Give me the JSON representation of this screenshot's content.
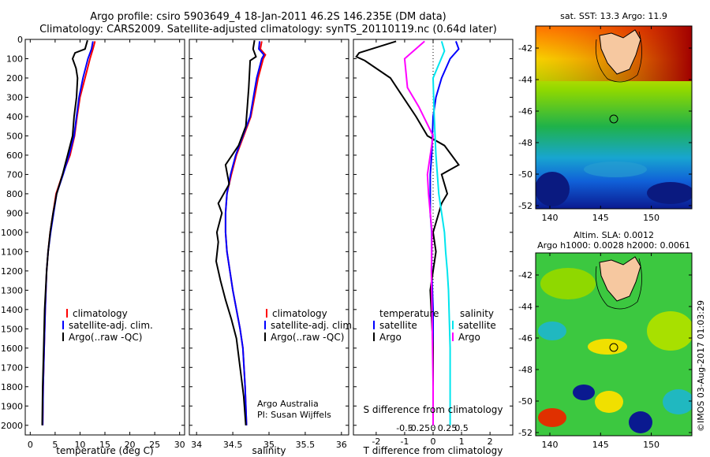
{
  "title_line1": "Argo profile: csiro 5903649_4 18-Jan-2011 46.2S 146.235E (DM data)",
  "title_line2": "Climatology: CARS2009. Satellite-adjusted climatology: synTS_20110119.nc (0.64d later)",
  "colors": {
    "climatology": "#ff0000",
    "satellite": "#0000ff",
    "argo": "#000000",
    "t_sat": "#0000ff",
    "s_sat": "#00e5ee",
    "s_argo": "#ff00ff"
  },
  "chart_data": [
    {
      "type": "line",
      "xlabel": "temperature (deg C)",
      "ylim": [
        2050,
        0
      ],
      "xlim": [
        -1,
        31
      ],
      "xticks": [
        0,
        5,
        10,
        15,
        20,
        25,
        30
      ],
      "yticks": [
        0,
        100,
        200,
        300,
        400,
        500,
        600,
        700,
        800,
        900,
        1000,
        1100,
        1200,
        1300,
        1400,
        1500,
        1600,
        1700,
        1800,
        1900,
        2000
      ],
      "legend": [
        "climatology",
        "satellite-adj. clim.",
        "Argo(..raw -QC)"
      ],
      "series": [
        {
          "name": "climatology",
          "x": [
            13.0,
            12.6,
            12.0,
            11.0,
            10.0,
            9.4,
            8.9,
            8.0,
            6.5,
            5.2,
            4.6,
            4.0,
            3.6,
            3.3,
            3.0,
            2.8,
            2.6,
            2.5
          ],
          "y": [
            10,
            50,
            100,
            200,
            300,
            400,
            500,
            600,
            700,
            800,
            900,
            1000,
            1100,
            1200,
            1400,
            1600,
            1800,
            2000
          ]
        },
        {
          "name": "satellite-adj. clim.",
          "x": [
            12.6,
            12.3,
            11.6,
            10.6,
            9.8,
            9.3,
            8.8,
            7.8,
            6.6,
            5.3,
            4.7,
            4.1,
            3.6,
            3.3,
            3.0,
            2.8,
            2.6,
            2.5
          ],
          "y": [
            10,
            50,
            100,
            200,
            300,
            400,
            500,
            600,
            700,
            800,
            900,
            1000,
            1100,
            1200,
            1400,
            1600,
            1800,
            2000
          ]
        },
        {
          "name": "Argo(..raw -QC)",
          "x": [
            11.5,
            11.0,
            9.0,
            8.5,
            9.2,
            9.5,
            9.3,
            8.8,
            8.5,
            7.5,
            6.5,
            5.3,
            4.6,
            4.0,
            3.6,
            3.3,
            2.9,
            2.7,
            2.5,
            2.4
          ],
          "y": [
            5,
            50,
            70,
            100,
            150,
            200,
            300,
            400,
            500,
            600,
            700,
            800,
            900,
            1000,
            1100,
            1200,
            1400,
            1600,
            1800,
            2000
          ]
        }
      ]
    },
    {
      "type": "line",
      "xlabel": "salinity",
      "ylim": [
        2050,
        0
      ],
      "xlim": [
        33.9,
        36.1
      ],
      "xticks": [
        34,
        34.5,
        35,
        35.5,
        36
      ],
      "xticklabels": [
        "34",
        "34.5",
        "35",
        "35.5",
        "36"
      ],
      "legend": [
        "climatology",
        "satellite-adj. clim."
      ],
      "legend2": "Argo(..raw -QC)",
      "note1": "Argo Australia",
      "note2": "PI: Susan Wijffels",
      "series": [
        {
          "name": "climatology",
          "x": [
            34.9,
            34.88,
            34.95,
            34.92,
            34.85,
            34.75,
            34.65,
            34.55,
            34.48,
            34.42,
            34.4,
            34.4,
            34.42,
            34.46,
            34.5,
            34.55,
            34.6,
            34.64,
            34.67,
            34.69
          ],
          "y": [
            10,
            50,
            80,
            100,
            200,
            400,
            500,
            600,
            700,
            800,
            900,
            1000,
            1100,
            1200,
            1300,
            1400,
            1500,
            1600,
            1800,
            2000
          ]
        },
        {
          "name": "satellite-adj. clim.",
          "x": [
            34.87,
            34.86,
            34.93,
            34.9,
            34.83,
            34.74,
            34.64,
            34.54,
            34.47,
            34.42,
            34.4,
            34.4,
            34.42,
            34.46,
            34.5,
            34.55,
            34.6,
            34.64,
            34.67,
            34.69
          ],
          "y": [
            10,
            50,
            80,
            100,
            200,
            400,
            500,
            600,
            700,
            800,
            900,
            1000,
            1100,
            1200,
            1300,
            1400,
            1500,
            1600,
            1800,
            2000
          ]
        },
        {
          "name": "Argo(..raw -QC)",
          "x": [
            34.8,
            34.78,
            34.82,
            34.74,
            34.72,
            34.7,
            34.68,
            34.58,
            34.4,
            34.45,
            34.3,
            34.35,
            34.28,
            34.3,
            34.27,
            34.33,
            34.4,
            34.48,
            34.55,
            34.6,
            34.65,
            34.68
          ],
          "y": [
            5,
            50,
            90,
            110,
            250,
            350,
            450,
            550,
            650,
            750,
            850,
            900,
            1000,
            1050,
            1150,
            1250,
            1350,
            1450,
            1550,
            1700,
            1850,
            2000
          ]
        }
      ]
    },
    {
      "type": "line",
      "xlabel": "T difference from climatology",
      "xlabel_top": "S difference from climatology",
      "ylim": [
        2050,
        0
      ],
      "xlim": [
        -2.8,
        2.8
      ],
      "xticks": [
        -2,
        -1,
        0,
        1,
        2
      ],
      "s_ticks": [
        -0.5,
        -0.25,
        0,
        0.25,
        0.5
      ],
      "s_ticklabels": [
        "-0.5",
        "-0.25",
        "0",
        "0.25",
        "0.5"
      ],
      "legend_headers": [
        "temperature",
        "salinity"
      ],
      "legend": [
        "satellite",
        "Argo",
        "satellite",
        "Argo"
      ],
      "series": [
        {
          "name": "T satellite",
          "x": [
            0.8,
            0.9,
            0.6,
            0.3,
            0.1,
            0.0,
            -0.05,
            -0.1,
            -0.1,
            -0.1,
            -0.05,
            -0.05,
            0.0,
            0.0,
            0.0,
            0.0,
            0.0
          ],
          "y": [
            10,
            50,
            100,
            200,
            300,
            400,
            600,
            700,
            800,
            900,
            1000,
            1200,
            1400,
            1600,
            1800,
            1900,
            2000
          ]
        },
        {
          "name": "T Argo",
          "x": [
            -1.3,
            -2.6,
            -2.7,
            -2.4,
            -1.5,
            -0.6,
            -0.2,
            0.4,
            0.9,
            0.3,
            0.5,
            0.3,
            0.0,
            0.1,
            -0.1,
            0.0,
            0.0
          ],
          "y": [
            10,
            70,
            90,
            110,
            200,
            400,
            500,
            550,
            650,
            700,
            800,
            850,
            1000,
            1100,
            1300,
            1600,
            2000
          ]
        },
        {
          "name": "S satellite",
          "x": [
            0.15,
            0.2,
            0.0,
            0.02,
            0.05,
            0.1,
            0.15,
            0.2,
            0.22,
            0.25,
            0.27,
            0.28,
            0.3,
            0.3,
            0.3
          ],
          "y": [
            10,
            60,
            200,
            400,
            600,
            800,
            900,
            1000,
            1100,
            1200,
            1300,
            1400,
            1600,
            1800,
            2000
          ]
        },
        {
          "name": "S Argo",
          "x": [
            -0.15,
            -0.5,
            -0.45,
            -0.25,
            0.0,
            -0.05,
            -0.1,
            -0.08,
            -0.05,
            -0.02,
            -0.03,
            -0.02,
            0.0,
            0.0
          ],
          "y": [
            10,
            100,
            250,
            350,
            500,
            600,
            700,
            800,
            900,
            1000,
            1200,
            1400,
            1800,
            2000
          ]
        }
      ]
    }
  ],
  "map1": {
    "title": "sat. SST: 13.3 Argo: 11.9",
    "yticklabels": [
      "-42",
      "-44",
      "-46",
      "-48",
      "-50",
      "-52"
    ],
    "xticklabels": [
      "140",
      "145",
      "150"
    ]
  },
  "map2": {
    "title1": "Altim. SLA: 0.0012",
    "title2": "Argo h1000: 0.0028 h2000: 0.0061",
    "yticklabels": [
      "-42",
      "-44",
      "-46",
      "-48",
      "-50",
      "-52"
    ],
    "xticklabels": [
      "140",
      "145",
      "150"
    ]
  },
  "stamp": "©IMOS 03-Aug-2017 01:03:29"
}
